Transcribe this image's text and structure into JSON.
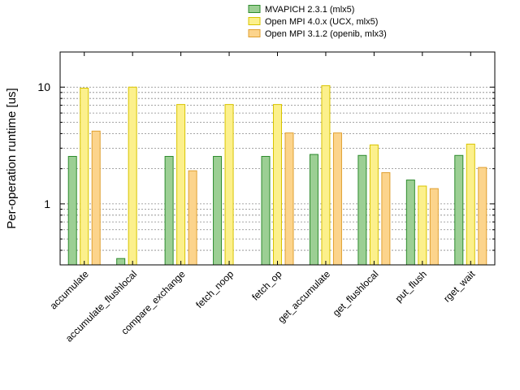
{
  "chart_data": {
    "type": "bar",
    "ylabel": "Per-operation runtime [us]",
    "yscale": "log",
    "ylim": [
      0.3,
      20
    ],
    "yticks": [
      1,
      10
    ],
    "ytick_labels": [
      "1",
      "10"
    ],
    "grid": "horizontal-minor-dashed",
    "legend_position": "top-right-outside",
    "categories": [
      "accumulate",
      "accumulate_flushlocal",
      "compare_exchange",
      "fetch_noop",
      "fetch_op",
      "get_accumulate",
      "get_flushlocal",
      "put_flush",
      "rget_wait"
    ],
    "series": [
      {
        "name": "MVAPICH 2.3.1 (mlx5)",
        "fill": "#9ccf94",
        "stroke": "#2e8b2e",
        "values": [
          2.55,
          0.34,
          2.55,
          2.55,
          2.55,
          2.65,
          2.6,
          1.6,
          2.6
        ]
      },
      {
        "name": "Open MPI 4.0.x (UCX, mlx5)",
        "fill": "#fcf08c",
        "stroke": "#d8c400",
        "values": [
          9.8,
          10.0,
          7.1,
          7.1,
          7.1,
          10.3,
          3.2,
          1.42,
          3.25
        ]
      },
      {
        "name": "Open MPI 3.1.2 (openib, mlx3)",
        "fill": "#fcd48c",
        "stroke": "#e0a030",
        "values": [
          4.2,
          null,
          1.92,
          null,
          4.05,
          4.05,
          1.85,
          1.35,
          2.05
        ]
      }
    ]
  }
}
